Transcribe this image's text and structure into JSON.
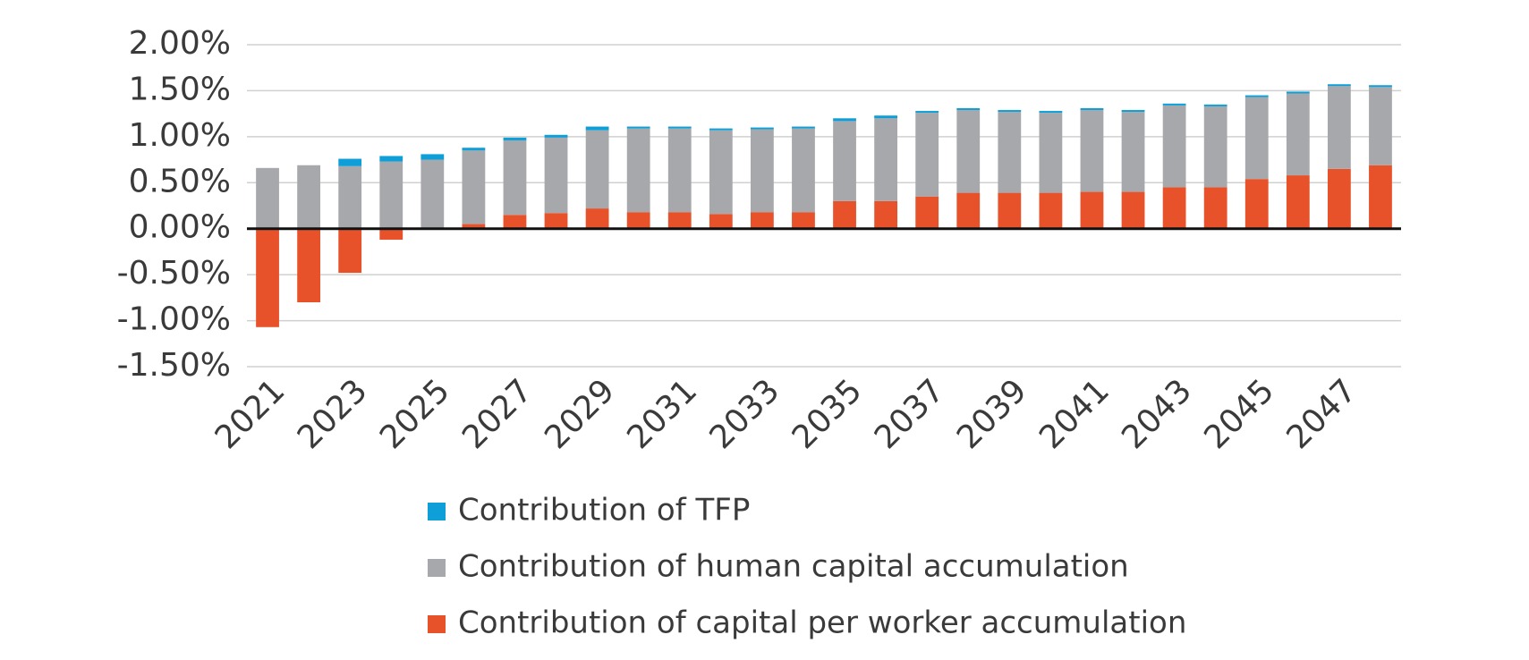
{
  "chart_data": {
    "type": "stacked_bar",
    "categories": [
      "2021",
      null,
      "2023",
      null,
      "2025",
      null,
      "2027",
      null,
      "2029",
      null,
      "2031",
      null,
      "2033",
      null,
      "2035",
      null,
      "2037",
      null,
      "2039",
      null,
      "2041",
      null,
      "2043",
      null,
      "2045",
      null,
      "2047",
      null
    ],
    "series": [
      {
        "name": "Contribution of capital per worker accumulation",
        "color": "#e8522a",
        "values": [
          -1.07,
          -0.8,
          -0.48,
          -0.12,
          0,
          0.05,
          0.15,
          0.17,
          0.22,
          0.18,
          0.18,
          0.16,
          0.18,
          0.18,
          0.3,
          0.3,
          0.35,
          0.39,
          0.39,
          0.39,
          0.4,
          0.4,
          0.45,
          0.45,
          0.54,
          0.58,
          0.65,
          0.69
        ]
      },
      {
        "name": "Contribution of human capital accumulation",
        "color": "#a7a8ab",
        "values": [
          0.66,
          0.69,
          0.68,
          0.73,
          0.75,
          0.8,
          0.81,
          0.82,
          0.85,
          0.91,
          0.91,
          0.91,
          0.9,
          0.91,
          0.87,
          0.9,
          0.91,
          0.9,
          0.88,
          0.87,
          0.89,
          0.87,
          0.89,
          0.88,
          0.89,
          0.89,
          0.9,
          0.85
        ]
      },
      {
        "name": "Contribution of TFP",
        "color": "#0e9fd8",
        "values": [
          0,
          0,
          0.08,
          0.06,
          0.06,
          0.03,
          0.03,
          0.03,
          0.04,
          0.02,
          0.02,
          0.02,
          0.02,
          0.02,
          0.03,
          0.03,
          0.02,
          0.02,
          0.02,
          0.02,
          0.02,
          0.02,
          0.02,
          0.02,
          0.02,
          0.02,
          0.02,
          0.02
        ]
      }
    ],
    "ylim": [
      -1.5,
      2.0
    ],
    "yticks": [
      {
        "value": -1.5,
        "label": "-1.50%"
      },
      {
        "value": -1.0,
        "label": "-1.00%"
      },
      {
        "value": -0.5,
        "label": "-0.50%"
      },
      {
        "value": 0,
        "label": "0.00%"
      },
      {
        "value": 0.5,
        "label": "0.50%"
      },
      {
        "value": 1.0,
        "label": "1.00%"
      },
      {
        "value": 1.5,
        "label": "1.50%"
      },
      {
        "value": 2.0,
        "label": "2.00%"
      }
    ],
    "grid": true
  }
}
